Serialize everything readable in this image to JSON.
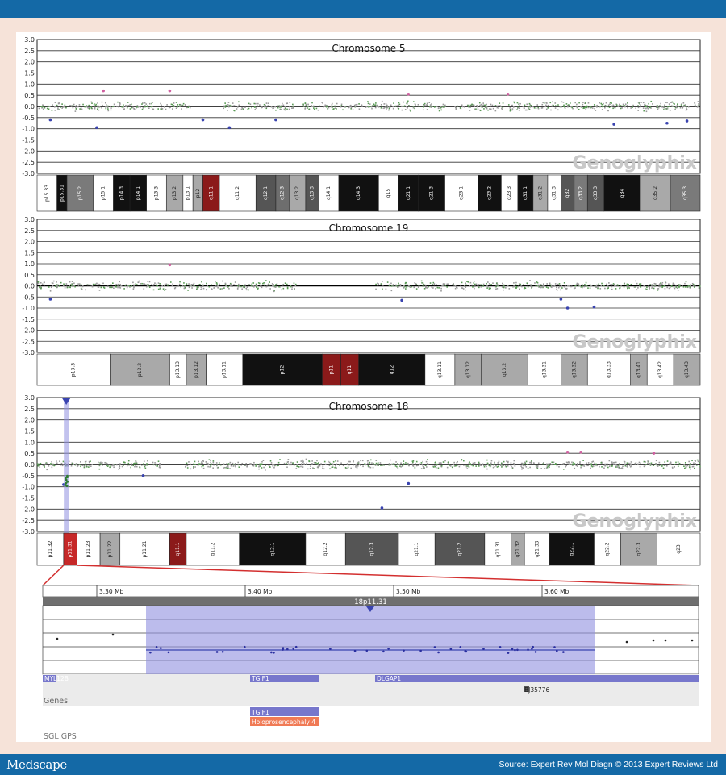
{
  "header": {
    "brand": "Medscape",
    "source": "Source: Expert Rev Mol Diagn © 2013 Expert Reviews Ltd"
  },
  "watermark": "Genoglyphix",
  "chart_data": [
    {
      "type": "scatter",
      "title": "Chromosome 5",
      "ylim": [
        -3.0,
        3.0
      ],
      "yticks": [
        "3.0",
        "2.5",
        "2.0",
        "1.5",
        "1.0",
        "0.5",
        "0.0",
        "-0.5",
        "-1.0",
        "-1.5",
        "-2.0",
        "-2.5",
        "-3.0"
      ],
      "bands": [
        "p15.33",
        "p15.31",
        "p15.2",
        "p15.1",
        "p14.3",
        "p14.1",
        "p13.3",
        "p13.2",
        "p13.1",
        "p12",
        "q11.1",
        "q11.2",
        "q12.1",
        "q12.3",
        "q13.2",
        "q13.3",
        "q14.1",
        "q14.3",
        "q15",
        "q21.1",
        "q21.3",
        "q23.1",
        "q23.2",
        "q23.3",
        "q31.1",
        "q31.2",
        "q31.3",
        "q32",
        "q33.2",
        "q33.3",
        "q34",
        "q35.2",
        "q35.3"
      ],
      "outliers": [
        {
          "x": 0.1,
          "y": 0.7
        },
        {
          "x": 0.2,
          "y": 0.7
        },
        {
          "x": 0.56,
          "y": 0.55
        },
        {
          "x": 0.71,
          "y": 0.55
        },
        {
          "x": 0.02,
          "y": -0.6
        },
        {
          "x": 0.09,
          "y": -0.95
        },
        {
          "x": 0.25,
          "y": -0.6
        },
        {
          "x": 0.29,
          "y": -0.95
        },
        {
          "x": 0.36,
          "y": -0.6
        },
        {
          "x": 0.87,
          "y": -0.8
        },
        {
          "x": 0.95,
          "y": -0.75
        },
        {
          "x": 0.98,
          "y": -0.65
        }
      ]
    },
    {
      "type": "scatter",
      "title": "Chromosome 19",
      "ylim": [
        -3.0,
        3.0
      ],
      "yticks": [
        "3.0",
        "2.5",
        "2.0",
        "1.5",
        "1.0",
        "0.5",
        "0.0",
        "-0.5",
        "-1.0",
        "-1.5",
        "-2.0",
        "-2.5",
        "-3.0"
      ],
      "bands": [
        "p13.3",
        "p13.2",
        "p13.13",
        "p13.12",
        "p13.11",
        "p12",
        "p11",
        "q11",
        "q12",
        "q13.11",
        "q13.12",
        "q13.2",
        "q13.31",
        "q13.32",
        "q13.33",
        "q13.41",
        "q13.42",
        "q13.43"
      ],
      "outliers": [
        {
          "x": 0.2,
          "y": 0.95
        },
        {
          "x": 0.02,
          "y": -0.6
        },
        {
          "x": 0.55,
          "y": -0.65
        },
        {
          "x": 0.79,
          "y": -0.6
        },
        {
          "x": 0.8,
          "y": -1.0
        },
        {
          "x": 0.84,
          "y": -0.95
        }
      ]
    },
    {
      "type": "scatter",
      "title": "Chromosome 18",
      "ylim": [
        -3.0,
        3.0
      ],
      "yticks": [
        "3.0",
        "2.5",
        "2.0",
        "1.5",
        "1.0",
        "0.5",
        "0.0",
        "-0.5",
        "-1.0",
        "-1.5",
        "-2.0",
        "-2.5",
        "-3.0"
      ],
      "bands": [
        "p11.32",
        "p11.31",
        "p11.23",
        "p11.22",
        "p11.21",
        "q11.1",
        "q11.2",
        "q12.1",
        "q12.2",
        "q12.3",
        "q21.1",
        "q21.2",
        "q21.31",
        "q21.32",
        "q21.33",
        "q22.1",
        "q22.2",
        "q22.3",
        "q23"
      ],
      "outliers": [
        {
          "x": 0.8,
          "y": 0.55
        },
        {
          "x": 0.82,
          "y": 0.55
        },
        {
          "x": 0.93,
          "y": 0.5
        },
        {
          "x": 0.16,
          "y": -0.5
        },
        {
          "x": 0.56,
          "y": -0.85
        },
        {
          "x": 0.52,
          "y": -1.95
        },
        {
          "x": 0.04,
          "y": -0.9
        }
      ],
      "deletion_marker": {
        "x": 0.044
      }
    }
  ],
  "zoom": {
    "region_label": "18p11.31",
    "scale_ticks": [
      {
        "label": "3.30 Mb",
        "x": 3.3
      },
      {
        "label": "3.40 Mb",
        "x": 3.4
      },
      {
        "label": "3.50 Mb",
        "x": 3.5
      },
      {
        "label": "3.60 Mb",
        "x": 3.6
      }
    ],
    "gene_track_label": "Genes",
    "genes": [
      {
        "name": "MYL12B",
        "start": 3.26,
        "end": 3.265
      },
      {
        "name": "TGIF1",
        "start": 3.4,
        "end": 3.45
      },
      {
        "name": "DLGAP1",
        "start": 3.48,
        "end": 3.7
      },
      {
        "name": "BJ35776",
        "start": 3.63,
        "end": 3.635
      }
    ],
    "sgl_label": "SGL GPS",
    "sgl_genes": [
      {
        "name": "TGIF1",
        "start": 3.4,
        "end": 3.45
      }
    ],
    "syndrome": {
      "name": "Holoprosencephaly 4",
      "start": 3.4,
      "end": 3.45
    }
  }
}
